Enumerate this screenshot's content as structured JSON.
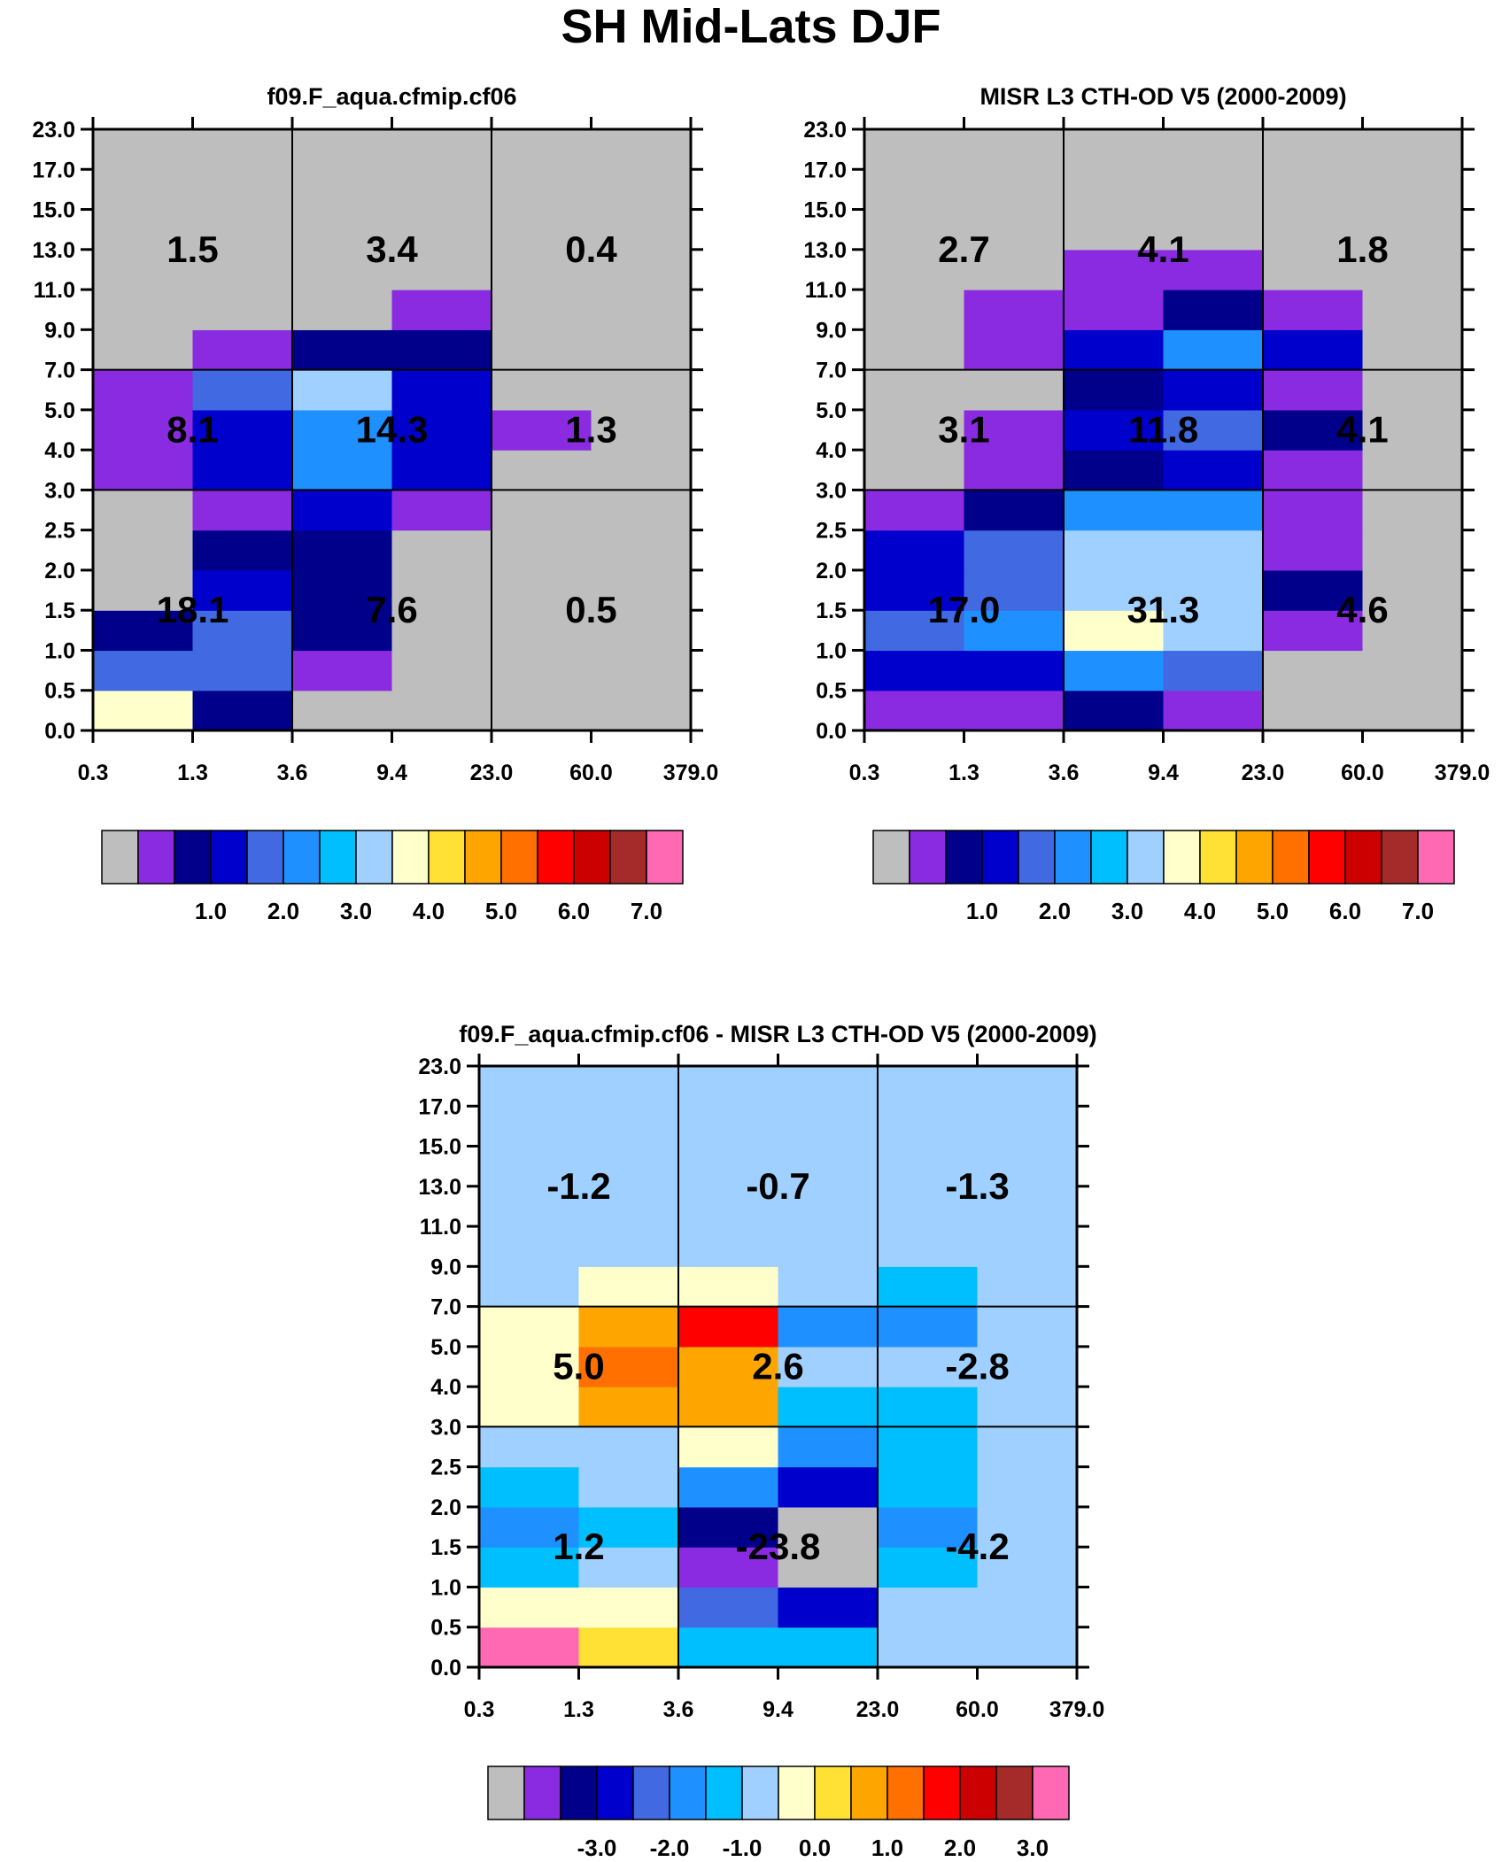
{
  "title": "SH Mid-Lats DJF",
  "palette": {
    "levels": [
      "#BEBEBE",
      "#8A2BE2",
      "#00008B",
      "#0000CD",
      "#4169E1",
      "#1E90FF",
      "#00BFFF",
      "#A0D0FF",
      "#FFFFCC",
      "#FFE135",
      "#FFA500",
      "#FF7000",
      "#FF0000",
      "#CD0000",
      "#A52A2A",
      "#FF69B4"
    ]
  },
  "chart_data": [
    {
      "type": "heatmap",
      "id": "model",
      "title": "f09.F_aqua.cfmip.cf06",
      "x_tick_labels": [
        "0.3",
        "1.3",
        "3.6",
        "9.4",
        "23.0",
        "60.0",
        "379.0"
      ],
      "y_tick_labels": [
        "0.0",
        "0.5",
        "1.0",
        "1.5",
        "2.0",
        "2.5",
        "3.0",
        "4.0",
        "5.0",
        "7.0",
        "9.0",
        "11.0",
        "13.0",
        "15.0",
        "17.0",
        "23.0"
      ],
      "cell_color_index_rows_bottom_to_top": [
        [
          8,
          2,
          0,
          0,
          0,
          0
        ],
        [
          4,
          4,
          1,
          0,
          0,
          0
        ],
        [
          2,
          4,
          2,
          0,
          0,
          0
        ],
        [
          0,
          3,
          2,
          0,
          0,
          0
        ],
        [
          0,
          2,
          2,
          0,
          0,
          0
        ],
        [
          0,
          1,
          3,
          1,
          0,
          0
        ],
        [
          1,
          3,
          5,
          3,
          0,
          0
        ],
        [
          1,
          3,
          5,
          3,
          1,
          0
        ],
        [
          1,
          4,
          7,
          3,
          0,
          0
        ],
        [
          0,
          1,
          2,
          2,
          0,
          0
        ],
        [
          0,
          0,
          0,
          1,
          0,
          0
        ],
        [
          0,
          0,
          0,
          0,
          0,
          0
        ],
        [
          0,
          0,
          0,
          0,
          0,
          0
        ],
        [
          0,
          0,
          0,
          0,
          0,
          0
        ],
        [
          0,
          0,
          0,
          0,
          0,
          0
        ]
      ],
      "summary_values_rows_top_to_bottom": [
        [
          "1.5",
          "3.4",
          "0.4"
        ],
        [
          "8.1",
          "14.3",
          "1.3"
        ],
        [
          "18.1",
          "7.6",
          "0.5"
        ]
      ],
      "colorbar_labels": [
        "1.0",
        "2.0",
        "3.0",
        "4.0",
        "5.0",
        "6.0",
        "7.0"
      ]
    },
    {
      "type": "heatmap",
      "id": "obs",
      "title": "MISR L3 CTH-OD V5 (2000-2009)",
      "x_tick_labels": [
        "0.3",
        "1.3",
        "3.6",
        "9.4",
        "23.0",
        "60.0",
        "379.0"
      ],
      "y_tick_labels": [
        "0.0",
        "0.5",
        "1.0",
        "1.5",
        "2.0",
        "2.5",
        "3.0",
        "4.0",
        "5.0",
        "7.0",
        "9.0",
        "11.0",
        "13.0",
        "15.0",
        "17.0",
        "23.0"
      ],
      "cell_color_index_rows_bottom_to_top": [
        [
          1,
          1,
          2,
          1,
          0,
          0
        ],
        [
          3,
          3,
          5,
          4,
          0,
          0
        ],
        [
          4,
          5,
          8,
          7,
          1,
          0
        ],
        [
          3,
          4,
          7,
          7,
          2,
          0
        ],
        [
          3,
          4,
          7,
          7,
          1,
          0
        ],
        [
          1,
          2,
          5,
          5,
          1,
          0
        ],
        [
          0,
          1,
          2,
          3,
          1,
          0
        ],
        [
          0,
          1,
          3,
          4,
          2,
          0
        ],
        [
          0,
          0,
          2,
          3,
          1,
          0
        ],
        [
          0,
          1,
          3,
          5,
          3,
          0
        ],
        [
          0,
          1,
          1,
          2,
          1,
          0
        ],
        [
          0,
          0,
          1,
          1,
          0,
          0
        ],
        [
          0,
          0,
          0,
          0,
          0,
          0
        ],
        [
          0,
          0,
          0,
          0,
          0,
          0
        ],
        [
          0,
          0,
          0,
          0,
          0,
          0
        ]
      ],
      "summary_values_rows_top_to_bottom": [
        [
          "2.7",
          "4.1",
          "1.8"
        ],
        [
          "3.1",
          "11.8",
          "4.1"
        ],
        [
          "17.0",
          "31.3",
          "4.6"
        ]
      ],
      "colorbar_labels": [
        "1.0",
        "2.0",
        "3.0",
        "4.0",
        "5.0",
        "6.0",
        "7.0"
      ]
    },
    {
      "type": "heatmap",
      "id": "diff",
      "title": "f09.F_aqua.cfmip.cf06 - MISR L3 CTH-OD V5 (2000-2009)",
      "x_tick_labels": [
        "0.3",
        "1.3",
        "3.6",
        "9.4",
        "23.0",
        "60.0",
        "379.0"
      ],
      "y_tick_labels": [
        "0.0",
        "0.5",
        "1.0",
        "1.5",
        "2.0",
        "2.5",
        "3.0",
        "4.0",
        "5.0",
        "7.0",
        "9.0",
        "11.0",
        "13.0",
        "15.0",
        "17.0",
        "23.0"
      ],
      "cell_color_index_rows_bottom_to_top": [
        [
          15,
          9,
          6,
          6,
          7,
          7
        ],
        [
          8,
          8,
          4,
          3,
          7,
          7
        ],
        [
          6,
          7,
          1,
          0,
          6,
          7
        ],
        [
          5,
          6,
          2,
          0,
          5,
          7
        ],
        [
          6,
          7,
          5,
          3,
          6,
          7
        ],
        [
          7,
          7,
          8,
          5,
          6,
          7
        ],
        [
          8,
          10,
          10,
          6,
          6,
          7
        ],
        [
          8,
          11,
          10,
          7,
          7,
          7
        ],
        [
          8,
          10,
          12,
          5,
          5,
          7
        ],
        [
          7,
          8,
          8,
          7,
          6,
          7
        ],
        [
          7,
          7,
          7,
          7,
          7,
          7
        ],
        [
          7,
          7,
          7,
          7,
          7,
          7
        ],
        [
          7,
          7,
          7,
          7,
          7,
          7
        ],
        [
          7,
          7,
          7,
          7,
          7,
          7
        ],
        [
          7,
          7,
          7,
          7,
          7,
          7
        ]
      ],
      "summary_values_rows_top_to_bottom": [
        [
          "-1.2",
          "-0.7",
          "-1.3"
        ],
        [
          "5.0",
          "2.6",
          "-2.8"
        ],
        [
          "1.2",
          "-23.8",
          "-4.2"
        ]
      ],
      "colorbar_labels": [
        "-3.0",
        "-2.0",
        "-1.0",
        "0.0",
        "1.0",
        "2.0",
        "3.0"
      ]
    }
  ]
}
